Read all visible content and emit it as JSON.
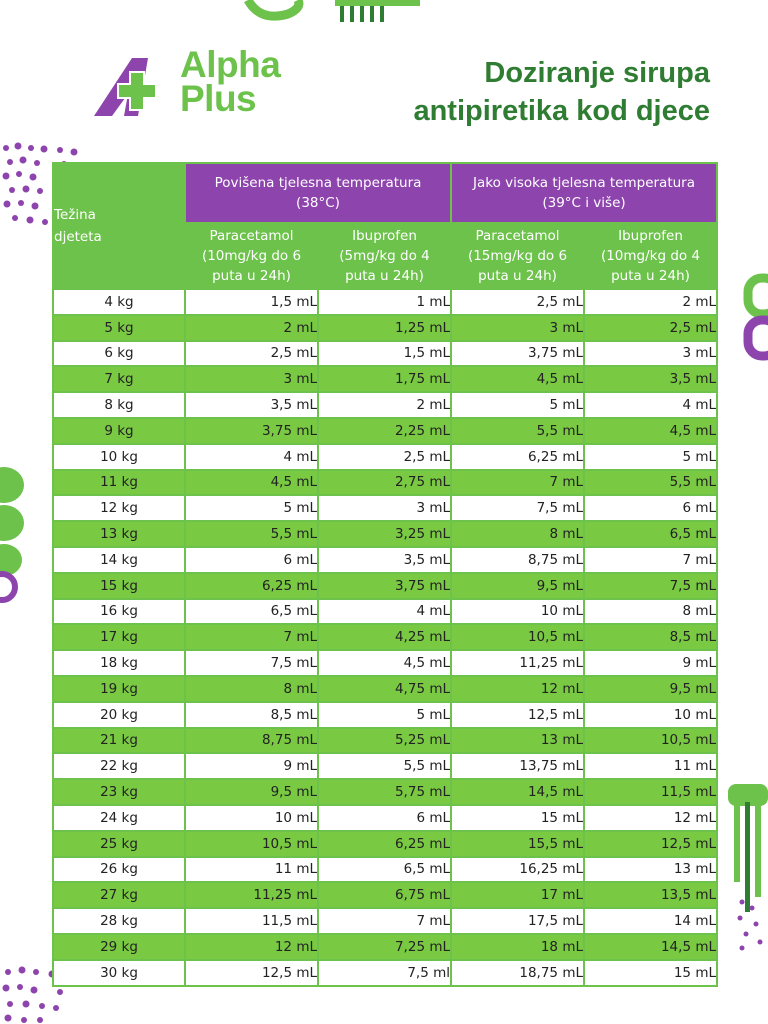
{
  "brand": {
    "line1": "Alpha",
    "line2": "Plus"
  },
  "title": {
    "line1": "Doziranje sirupa",
    "line2": "antipiretika kod djece"
  },
  "colors": {
    "green": "#6cc24a",
    "purple": "#8e44ad",
    "dark_green": "#2f7d32"
  },
  "table": {
    "weight_header": {
      "line1": "Težina",
      "line2": "djeteta"
    },
    "group1": {
      "line1": "Povišena tjelesna temperatura",
      "line2": "(38°C)"
    },
    "group2": {
      "line1": "Jako visoka tjelesna temperatura",
      "line2": "(39°C i više)"
    },
    "sub": [
      {
        "line1": "Paracetamol",
        "line2": "(10mg/kg do 6",
        "line3": "puta u 24h)"
      },
      {
        "line1": "Ibuprofen",
        "line2": "(5mg/kg do 4",
        "line3": "puta u 24h)"
      },
      {
        "line1": "Paracetamol",
        "line2": "(15mg/kg do 6",
        "line3": "puta u 24h)"
      },
      {
        "line1": "Ibuprofen",
        "line2": "(10mg/kg do 4",
        "line3": "puta u 24h)"
      }
    ],
    "rows": [
      [
        "4 kg",
        "1,5 mL",
        "1 mL",
        "2,5 mL",
        "2 mL"
      ],
      [
        "5 kg",
        "2 mL",
        "1,25 mL",
        "3 mL",
        "2,5 mL"
      ],
      [
        "6 kg",
        "2,5 mL",
        "1,5 mL",
        "3,75 mL",
        "3 mL"
      ],
      [
        "7 kg",
        "3 mL",
        "1,75 mL",
        "4,5 mL",
        "3,5 mL"
      ],
      [
        "8 kg",
        "3,5 mL",
        "2 mL",
        "5 mL",
        "4 mL"
      ],
      [
        "9 kg",
        "3,75 mL",
        "2,25 mL",
        "5,5 mL",
        "4,5 mL"
      ],
      [
        "10 kg",
        "4 mL",
        "2,5 mL",
        "6,25 mL",
        "5 mL"
      ],
      [
        "11 kg",
        "4,5 mL",
        "2,75 mL",
        "7 mL",
        "5,5 mL"
      ],
      [
        "12 kg",
        "5 mL",
        "3 mL",
        "7,5 mL",
        "6 mL"
      ],
      [
        "13 kg",
        "5,5 mL",
        "3,25 mL",
        "8 mL",
        "6,5 mL"
      ],
      [
        "14 kg",
        "6 mL",
        "3,5 mL",
        "8,75 mL",
        "7 mL"
      ],
      [
        "15 kg",
        "6,25 mL",
        "3,75 mL",
        "9,5 mL",
        "7,5 mL"
      ],
      [
        "16 kg",
        "6,5 mL",
        "4 mL",
        "10 mL",
        "8 mL"
      ],
      [
        "17 kg",
        "7 mL",
        "4,25 mL",
        "10,5 mL",
        "8,5 mL"
      ],
      [
        "18 kg",
        "7,5 mL",
        "4,5 mL",
        "11,25 mL",
        "9 mL"
      ],
      [
        "19 kg",
        "8 mL",
        "4,75 mL",
        "12 mL",
        "9,5 mL"
      ],
      [
        "20 kg",
        "8,5 mL",
        "5 mL",
        "12,5 mL",
        "10 mL"
      ],
      [
        "21 kg",
        "8,75 mL",
        "5,25 mL",
        "13 mL",
        "10,5 mL"
      ],
      [
        "22 kg",
        "9 mL",
        "5,5 mL",
        "13,75 mL",
        "11 mL"
      ],
      [
        "23 kg",
        "9,5 mL",
        "5,75 mL",
        "14,5 mL",
        "11,5 mL"
      ],
      [
        "24 kg",
        "10 mL",
        "6 mL",
        "15 mL",
        "12 mL"
      ],
      [
        "25 kg",
        "10,5 mL",
        "6,25 mL",
        "15,5 mL",
        "12,5 mL"
      ],
      [
        "26 kg",
        "11 mL",
        "6,5 mL",
        "16,25 mL",
        "13 mL"
      ],
      [
        "27 kg",
        "11,25 mL",
        "6,75 mL",
        "17 mL",
        "13,5 mL"
      ],
      [
        "28 kg",
        "11,5 mL",
        "7 mL",
        "17,5 mL",
        "14 mL"
      ],
      [
        "29 kg",
        "12 mL",
        "7,25 mL",
        "18 mL",
        "14,5 mL"
      ],
      [
        "30 kg",
        "12,5 mL",
        "7,5 ml",
        "18,75 mL",
        "15 mL"
      ]
    ]
  }
}
